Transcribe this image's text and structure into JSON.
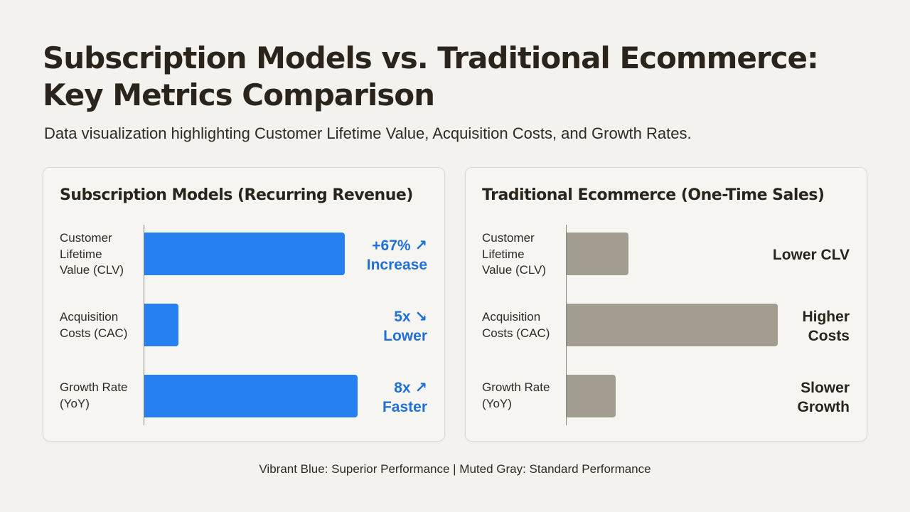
{
  "title": {
    "line1": "Subscription Models vs. Traditional Ecommerce:",
    "line2": "Key Metrics Comparison"
  },
  "subtitle": "Data visualization highlighting Customer Lifetime Value, Acquisition Costs, and Growth Rates.",
  "footer": "Vibrant Blue: Superior Performance | Muted Gray: Standard Performance",
  "colors": {
    "superior": "#2680f0",
    "standard": "#a29c91",
    "superior_text": "#2170d6",
    "background": "#f3f2ee"
  },
  "chart_data": [
    {
      "type": "bar",
      "orientation": "horizontal",
      "title": "Subscription Models (Recurring Revenue)",
      "categories": [
        [
          "Customer",
          "Lifetime",
          "Value (CLV)"
        ],
        [
          "Acquisition",
          "Costs (CAC)"
        ],
        [
          "Growth Rate",
          "(YoY)"
        ]
      ],
      "values": [
        0.94,
        0.16,
        1.0
      ],
      "value_scale": "relative (no numeric axis shown)",
      "annotations": [
        {
          "value": "+67%",
          "arrow": "↗",
          "label": "Increase"
        },
        {
          "value": "5x",
          "arrow": "↘",
          "label": "Lower"
        },
        {
          "value": "8x",
          "arrow": "↗",
          "label": "Faster"
        }
      ],
      "color": "blue"
    },
    {
      "type": "bar",
      "orientation": "horizontal",
      "title": "Traditional Ecommerce (One-Time Sales)",
      "categories": [
        [
          "Customer",
          "Lifetime",
          "Value (CLV)"
        ],
        [
          "Acquisition",
          "Costs (CAC)"
        ],
        [
          "Growth Rate",
          "(YoY)"
        ]
      ],
      "values": [
        0.29,
        0.99,
        0.23
      ],
      "value_scale": "relative (no numeric axis shown)",
      "annotations": [
        {
          "lines": [
            "Lower CLV"
          ]
        },
        {
          "lines": [
            "Higher",
            "Costs"
          ]
        },
        {
          "lines": [
            "Slower",
            "Growth"
          ]
        }
      ],
      "color": "gray"
    }
  ]
}
